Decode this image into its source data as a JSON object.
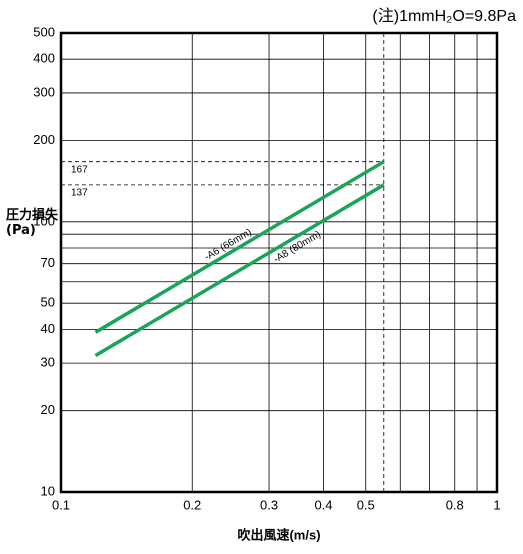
{
  "chart_data": {
    "type": "line",
    "note": "(注)1mmH₂O=9.8Pa",
    "x_label": "吹出風速(m/s)",
    "y_label": "圧力損失(Pa)",
    "log_x": true,
    "log_y": true,
    "xlim": [
      0.1,
      1
    ],
    "ylim": [
      10,
      500
    ],
    "xticks": [
      0.1,
      0.2,
      0.3,
      0.4,
      0.5,
      0.8,
      1
    ],
    "xminor": [
      0.6,
      0.7,
      0.9
    ],
    "yticks": [
      10,
      20,
      30,
      40,
      50,
      70,
      100,
      200,
      300,
      400,
      500
    ],
    "yminor": [
      60,
      80,
      90
    ],
    "grid": true,
    "ref_y": [
      167,
      137
    ],
    "ref_x": 0.55,
    "series": [
      {
        "name": "-A6 (66mm)",
        "color": "#1aa35a",
        "x": [
          0.12,
          0.55
        ],
        "values": [
          39,
          167
        ]
      },
      {
        "name": "-A8 (80mm)",
        "color": "#1aa35a",
        "x": [
          0.12,
          0.55
        ],
        "values": [
          32,
          137
        ]
      }
    ]
  }
}
